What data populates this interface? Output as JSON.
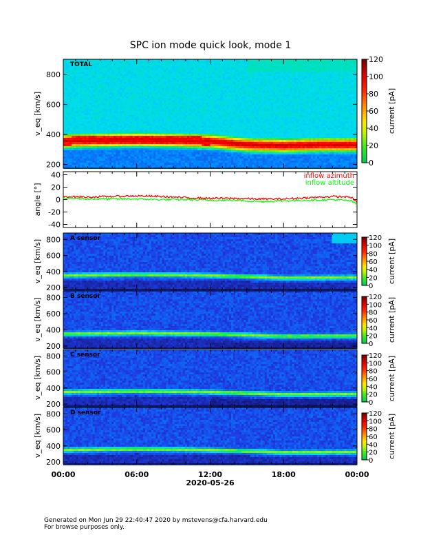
{
  "title": "SPC ion mode quick look, mode 1",
  "footer": {
    "line1": "Generated on Mon Jun 29 22:40:47 2020 by mstevens@cfa.harvard.edu",
    "line2": "For browse purposes only."
  },
  "colors": {
    "inflow_azimuth": "#ff0000",
    "inflow_altitude": "#00ff00"
  },
  "chart_data": [
    {
      "type": "heatmap",
      "panel_label": "TOTAL",
      "ylabel": "v_eq [km/s]",
      "ylim": [
        175,
        900
      ],
      "yticks": [
        200,
        400,
        600,
        800
      ],
      "colorbar": {
        "label": "current [pA]",
        "range": [
          0,
          120
        ],
        "ticks": [
          0,
          20,
          40,
          60,
          80,
          100,
          120
        ]
      },
      "xlim": [
        "00:00",
        "24:00"
      ],
      "beam_center_kms": [
        {
          "t": "00:00",
          "v": 355
        },
        {
          "t": "03:00",
          "v": 360
        },
        {
          "t": "06:00",
          "v": 365
        },
        {
          "t": "09:00",
          "v": 360
        },
        {
          "t": "12:00",
          "v": 355
        },
        {
          "t": "15:00",
          "v": 330
        },
        {
          "t": "18:00",
          "v": 325
        },
        {
          "t": "21:00",
          "v": 330
        },
        {
          "t": "24:00",
          "v": 330
        }
      ],
      "peak_current_pA": 110
    },
    {
      "type": "line",
      "ylabel": "angle [°]",
      "ylim": [
        -45,
        45
      ],
      "yticks": [
        -40,
        -20,
        0,
        20,
        40
      ],
      "series": [
        {
          "name": "inflow azimuth",
          "x": [
            "00:00",
            "02:00",
            "04:00",
            "06:00",
            "08:00",
            "10:00",
            "12:00",
            "14:00",
            "16:00",
            "18:00",
            "20:00",
            "22:00",
            "23:30",
            "24:00"
          ],
          "values": [
            5,
            4,
            5,
            6,
            5,
            3,
            2,
            2,
            1,
            1,
            3,
            5,
            4,
            -5
          ]
        },
        {
          "name": "inflow altitude",
          "x": [
            "00:00",
            "02:00",
            "04:00",
            "06:00",
            "08:00",
            "10:00",
            "12:00",
            "14:00",
            "16:00",
            "18:00",
            "20:00",
            "22:00",
            "23:30",
            "24:00"
          ],
          "values": [
            2,
            1,
            1,
            1,
            0,
            0,
            -1,
            -1,
            -3,
            -2,
            -1,
            0,
            -2,
            -8
          ]
        }
      ]
    },
    {
      "type": "heatmap",
      "panel_label": "A sensor",
      "ylabel": "v_eq [km/s]",
      "ylim": [
        175,
        880
      ],
      "yticks": [
        200,
        400,
        600,
        800
      ],
      "colorbar": {
        "label": "current [pA]",
        "range": [
          0,
          120
        ],
        "ticks": [
          0,
          20,
          40,
          60,
          80,
          100,
          120
        ]
      },
      "beam_center_kms": [
        {
          "t": "00:00",
          "v": 350
        },
        {
          "t": "06:00",
          "v": 360
        },
        {
          "t": "12:00",
          "v": 350
        },
        {
          "t": "18:00",
          "v": 320
        },
        {
          "t": "24:00",
          "v": 325
        }
      ],
      "peak_current_pA": 50
    },
    {
      "type": "heatmap",
      "panel_label": "B sensor",
      "ylabel": "v_eq [km/s]",
      "ylim": [
        175,
        880
      ],
      "yticks": [
        200,
        400,
        600,
        800
      ],
      "colorbar": {
        "label": "current [pA]",
        "range": [
          0,
          120
        ],
        "ticks": [
          0,
          20,
          40,
          60,
          80,
          100,
          120
        ]
      },
      "beam_center_kms": [
        {
          "t": "00:00",
          "v": 350
        },
        {
          "t": "06:00",
          "v": 360
        },
        {
          "t": "12:00",
          "v": 350
        },
        {
          "t": "18:00",
          "v": 320
        },
        {
          "t": "24:00",
          "v": 325
        }
      ],
      "peak_current_pA": 50
    },
    {
      "type": "heatmap",
      "panel_label": "C sensor",
      "ylabel": "v_eq [km/s]",
      "ylim": [
        175,
        880
      ],
      "yticks": [
        200,
        400,
        600,
        800
      ],
      "colorbar": {
        "label": "current [pA]",
        "range": [
          0,
          120
        ],
        "ticks": [
          0,
          20,
          40,
          60,
          80,
          100,
          120
        ]
      },
      "beam_center_kms": [
        {
          "t": "00:00",
          "v": 350
        },
        {
          "t": "06:00",
          "v": 360
        },
        {
          "t": "12:00",
          "v": 350
        },
        {
          "t": "18:00",
          "v": 320
        },
        {
          "t": "24:00",
          "v": 325
        }
      ],
      "peak_current_pA": 50
    },
    {
      "type": "heatmap",
      "panel_label": "D sensor",
      "ylabel": "v_eq [km/s]",
      "ylim": [
        175,
        880
      ],
      "yticks": [
        200,
        400,
        600,
        800
      ],
      "colorbar": {
        "label": "current [pA]",
        "range": [
          0,
          120
        ],
        "ticks": [
          0,
          20,
          40,
          60,
          80,
          100,
          120
        ]
      },
      "beam_center_kms": [
        {
          "t": "00:00",
          "v": 350
        },
        {
          "t": "06:00",
          "v": 360
        },
        {
          "t": "12:00",
          "v": 350
        },
        {
          "t": "18:00",
          "v": 320
        },
        {
          "t": "24:00",
          "v": 325
        }
      ],
      "peak_current_pA": 50
    }
  ],
  "x_axis": {
    "ticks": [
      "00:00",
      "06:00",
      "12:00",
      "18:00",
      "00:00"
    ],
    "date_label": "2020-05-26"
  }
}
